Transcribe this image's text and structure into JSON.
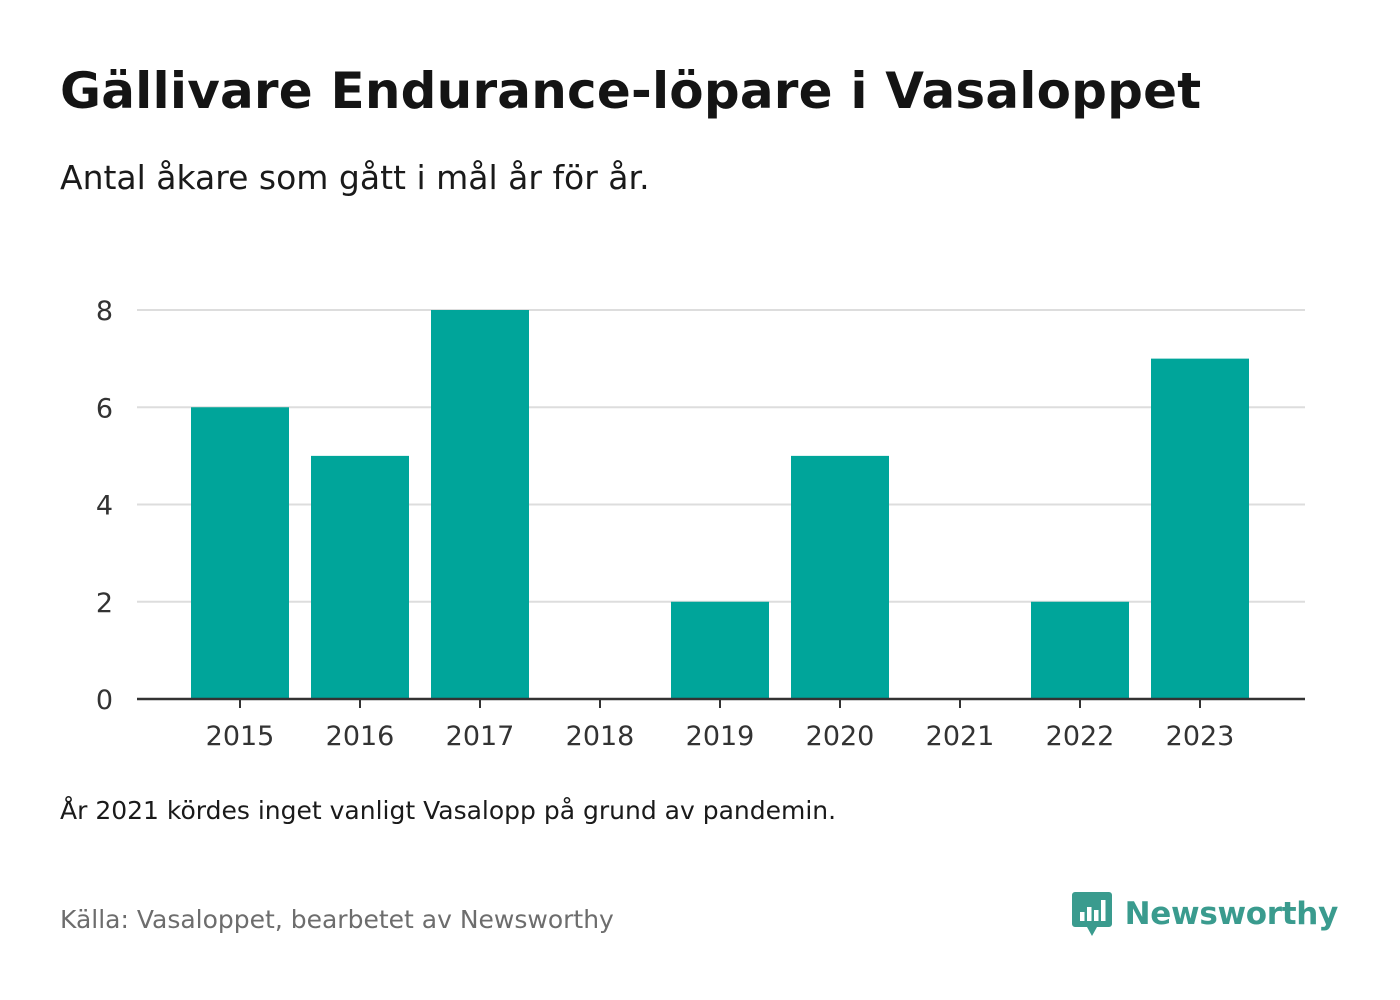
{
  "header": {
    "title": "Gällivare Endurance-löpare i Vasaloppet",
    "subtitle": "Antal åkare som gått i mål år för år."
  },
  "footer": {
    "note": "År 2021 kördes inget vanligt Vasalopp på grund av pandemin.",
    "source": "Källa: Vasaloppet, bearbetet av Newsworthy",
    "brand_name": "Newsworthy",
    "brand_icon": "newsworthy-logo-icon"
  },
  "colors": {
    "bar": "#00a59a",
    "grid": "#dddddd",
    "axis": "#333333",
    "brand": "#3a9b8e"
  },
  "chart_data": {
    "type": "bar",
    "title": "Gällivare Endurance-löpare i Vasaloppet",
    "subtitle": "Antal åkare som gått i mål år för år.",
    "categories": [
      "2015",
      "2016",
      "2017",
      "2018",
      "2019",
      "2020",
      "2021",
      "2022",
      "2023"
    ],
    "values": [
      6,
      5,
      8,
      0,
      2,
      5,
      0,
      2,
      7
    ],
    "y_ticks": [
      0,
      2,
      4,
      6,
      8
    ],
    "ylim": [
      0,
      8
    ],
    "xlabel": "",
    "ylabel": "",
    "grid": true,
    "legend": "none"
  }
}
